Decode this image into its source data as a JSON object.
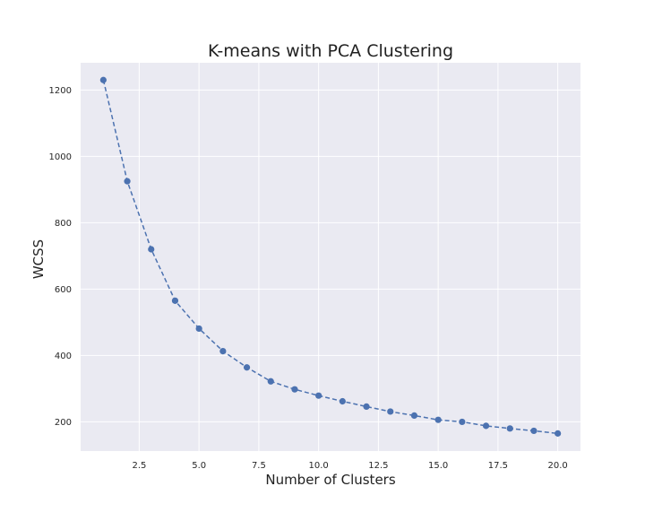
{
  "chart_data": {
    "type": "line",
    "title": "K-means with PCA Clustering",
    "xlabel": "Number of Clusters",
    "ylabel": "WCSS",
    "xlim": [
      0.05,
      20.95
    ],
    "ylim": [
      112,
      1282
    ],
    "xticks": [
      2.5,
      5.0,
      7.5,
      10.0,
      12.5,
      15.0,
      17.5,
      20.0
    ],
    "xtick_labels": [
      "2.5",
      "5.0",
      "7.5",
      "10.0",
      "12.5",
      "15.0",
      "17.5",
      "20.0"
    ],
    "yticks": [
      200,
      400,
      600,
      800,
      1000,
      1200
    ],
    "ytick_labels": [
      "200",
      "400",
      "600",
      "800",
      "1000",
      "1200"
    ],
    "grid": true,
    "line_style": "dashed",
    "marker": "circle",
    "colors": {
      "series": "#4c72b0",
      "plot_background": "#eaeaf2",
      "grid": "#ffffff"
    },
    "series": [
      {
        "x": [
          1,
          2,
          3,
          4,
          5,
          6,
          7,
          8,
          9,
          10,
          11,
          12,
          13,
          14,
          15,
          16,
          17,
          18,
          19,
          20
        ],
        "values": [
          1230,
          925,
          720,
          565,
          481,
          413,
          364,
          322,
          298,
          279,
          262,
          246,
          231,
          219,
          206,
          200,
          188,
          180,
          173,
          165
        ]
      }
    ]
  }
}
